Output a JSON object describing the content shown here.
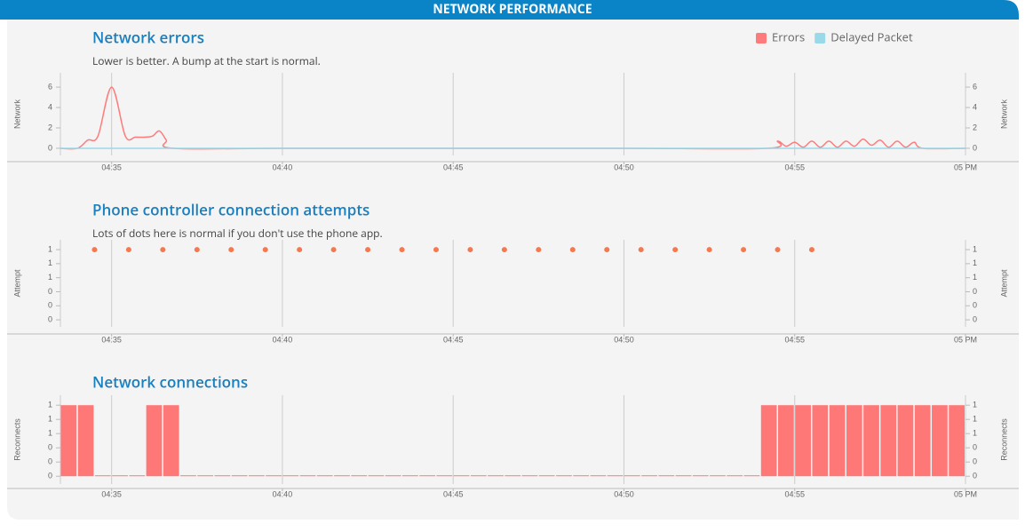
{
  "header": {
    "title": "NETWORK PERFORMANCE"
  },
  "chart_data": [
    {
      "type": "line",
      "title": "Network errors",
      "subtitle": "Lower is better. A bump at the start is normal.",
      "ylabel": "Network",
      "legend": "top-right",
      "xlim": [
        33.5,
        60
      ],
      "xticks": [
        {
          "value": 35,
          "label": "04:35"
        },
        {
          "value": 40,
          "label": "04:40"
        },
        {
          "value": 45,
          "label": "04:45"
        },
        {
          "value": 50,
          "label": "04:50"
        },
        {
          "value": 55,
          "label": "04:55"
        },
        {
          "value": 60,
          "label": "05 PM"
        }
      ],
      "ylim": [
        -0.7,
        7.4
      ],
      "yticks": [
        0,
        2,
        4,
        6
      ],
      "grid": true,
      "series": [
        {
          "name": "Errors",
          "color": "#ff7b7b",
          "x": [
            33.5,
            34,
            34.3,
            34.6,
            35,
            35.4,
            35.7,
            36,
            36.2,
            36.4,
            36.6,
            36.8,
            40,
            45,
            50,
            54.2,
            54.5,
            54.75,
            55,
            55.25,
            55.5,
            55.75,
            56,
            56.25,
            56.5,
            56.75,
            57,
            57.25,
            57.5,
            57.75,
            58,
            58.25,
            58.5,
            58.75,
            60
          ],
          "values": [
            0,
            0,
            0.8,
            1.2,
            6,
            1.2,
            1.1,
            1.1,
            1.2,
            1.7,
            0.8,
            0,
            0,
            0,
            0,
            0,
            0.7,
            0.2,
            0.6,
            0.1,
            0.7,
            0.1,
            0.7,
            0.1,
            0.7,
            0.2,
            0.9,
            0.3,
            0.8,
            0.1,
            0.7,
            0.1,
            0.6,
            0,
            0
          ]
        },
        {
          "name": "Delayed Packet",
          "color": "#9ad9e8",
          "x": [
            33.5,
            60
          ],
          "values": [
            0,
            0
          ]
        }
      ]
    },
    {
      "type": "scatter",
      "title": "Phone controller connection attempts",
      "subtitle": "Lots of dots here is normal if you don't use the phone app.",
      "ylabel": "Attempt",
      "color": "#f5784f",
      "xlim": [
        33.5,
        60
      ],
      "xticks": [
        {
          "value": 35,
          "label": "04:35"
        },
        {
          "value": 40,
          "label": "04:40"
        },
        {
          "value": 45,
          "label": "04:45"
        },
        {
          "value": 50,
          "label": "04:50"
        },
        {
          "value": 55,
          "label": "04:55"
        },
        {
          "value": 60,
          "label": "05 PM"
        }
      ],
      "ylim": [
        -0.1,
        1.14
      ],
      "yticks": [
        0,
        {
          "value": 0.2,
          "label": "0"
        },
        {
          "value": 0.4,
          "label": "0"
        },
        {
          "value": 0.6,
          "label": "1"
        },
        {
          "value": 0.8,
          "label": "1"
        },
        1
      ],
      "grid": true,
      "x": [
        34.5,
        35.5,
        36.5,
        37.5,
        38.5,
        39.5,
        40.5,
        41.5,
        42.5,
        43.5,
        44.5,
        45.5,
        46.5,
        47.5,
        48.5,
        49.5,
        50.5,
        51.5,
        52.5,
        53.5,
        54.5,
        55.5
      ],
      "values": [
        1,
        1,
        1,
        1,
        1,
        1,
        1,
        1,
        1,
        1,
        1,
        1,
        1,
        1,
        1,
        1,
        1,
        1,
        1,
        1,
        1,
        1
      ]
    },
    {
      "type": "histogram",
      "title": "Network connections",
      "ylabel": "Reconnects",
      "color": "#ff7878",
      "xlim": [
        33.5,
        60
      ],
      "xticks": [
        {
          "value": 35,
          "label": "04:35"
        },
        {
          "value": 40,
          "label": "04:40"
        },
        {
          "value": 45,
          "label": "04:45"
        },
        {
          "value": 50,
          "label": "04:50"
        },
        {
          "value": 55,
          "label": "04:55"
        },
        {
          "value": 60,
          "label": "05 PM"
        }
      ],
      "ylim": [
        -0.11,
        1.14
      ],
      "yticks": [
        0,
        {
          "value": 0.2,
          "label": "0"
        },
        {
          "value": 0.4,
          "label": "0"
        },
        {
          "value": 0.6,
          "label": "1"
        },
        {
          "value": 0.8,
          "label": "1"
        },
        1
      ],
      "grid": true,
      "bins": [
        33.5,
        34,
        34.5,
        35,
        35.5,
        36,
        36.5,
        37,
        37.5,
        38,
        38.5,
        39,
        39.5,
        40,
        40.5,
        41,
        41.5,
        42,
        42.5,
        43,
        43.5,
        44,
        44.5,
        45,
        45.5,
        46,
        46.5,
        47,
        47.5,
        48,
        48.5,
        49,
        49.5,
        50,
        50.5,
        51,
        51.5,
        52,
        52.5,
        53,
        53.5,
        54,
        54.5,
        55,
        55.5,
        56,
        56.5,
        57,
        57.5,
        58,
        58.5,
        59,
        59.5,
        60
      ],
      "values": [
        1,
        1,
        0,
        0,
        0,
        1,
        1,
        0,
        0,
        0,
        0,
        0,
        0,
        0,
        0,
        0,
        0,
        0,
        0,
        0,
        0,
        0,
        0,
        0,
        0,
        0,
        0,
        0,
        0,
        0,
        0,
        0,
        0,
        0,
        0,
        0,
        0,
        0,
        0,
        0,
        0,
        1,
        1,
        1,
        1,
        1,
        1,
        1,
        1,
        1,
        1,
        1,
        1
      ]
    }
  ]
}
